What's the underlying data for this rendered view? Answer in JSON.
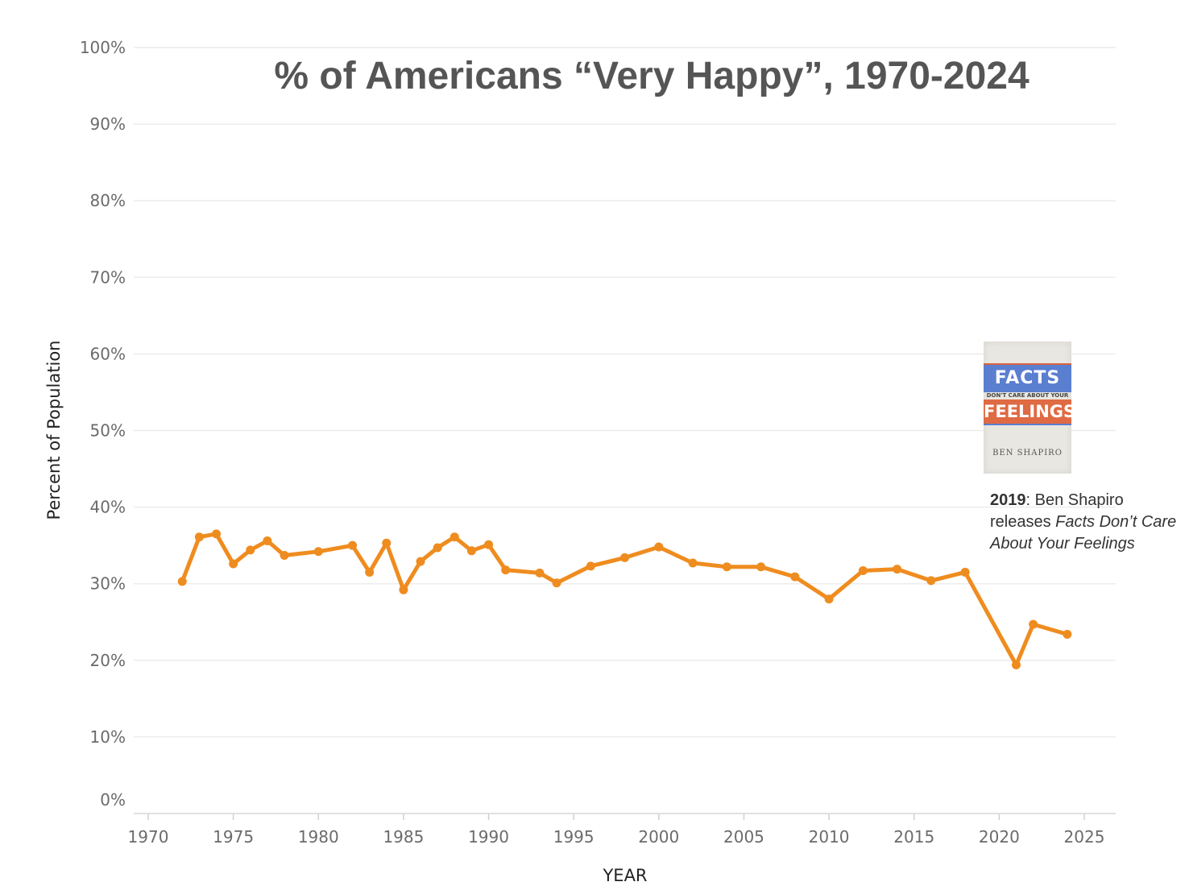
{
  "chart_data": {
    "type": "line",
    "title": "% of Americans “Very Happy”, 1970-2024",
    "xlabel": "YEAR",
    "ylabel": "Percent of Population",
    "xlim": [
      1970,
      2025
    ],
    "ylim": [
      0,
      100
    ],
    "x_ticks": [
      1970,
      1975,
      1980,
      1985,
      1990,
      1995,
      2000,
      2005,
      2010,
      2015,
      2020,
      2025
    ],
    "y_ticks": [
      "0%",
      "10%",
      "20%",
      "30%",
      "40%",
      "50%",
      "60%",
      "70%",
      "80%",
      "90%",
      "100%"
    ],
    "y_tick_values": [
      0,
      10,
      20,
      30,
      40,
      50,
      60,
      70,
      80,
      90,
      100
    ],
    "grid": true,
    "line_color": "#ef8c1f",
    "series": [
      {
        "name": "Very Happy",
        "x": [
          1972,
          1973,
          1974,
          1975,
          1976,
          1977,
          1978,
          1980,
          1982,
          1983,
          1984,
          1985,
          1986,
          1987,
          1988,
          1989,
          1990,
          1991,
          1993,
          1994,
          1996,
          1998,
          2000,
          2002,
          2004,
          2006,
          2008,
          2010,
          2012,
          2014,
          2016,
          2018,
          2021,
          2022,
          2024
        ],
        "values": [
          30.3,
          36.1,
          36.5,
          32.6,
          34.4,
          35.6,
          33.7,
          34.2,
          35.0,
          31.5,
          35.3,
          29.2,
          32.9,
          34.7,
          36.1,
          34.3,
          35.1,
          31.8,
          31.4,
          30.1,
          32.3,
          33.4,
          34.8,
          32.7,
          32.2,
          32.2,
          30.9,
          28.0,
          31.7,
          31.9,
          30.4,
          31.5,
          19.4,
          24.7,
          23.4
        ]
      }
    ]
  },
  "annotation": {
    "year": "2019",
    "text_before": ": Ben Shapiro releases ",
    "book_title": "Facts Don’t Care About Your Feelings"
  },
  "book_cover": {
    "line1": "FACTS",
    "line2": "DON'T CARE ABOUT YOUR",
    "line3": "FEELINGS",
    "author": "BEN SHAPIRO"
  }
}
